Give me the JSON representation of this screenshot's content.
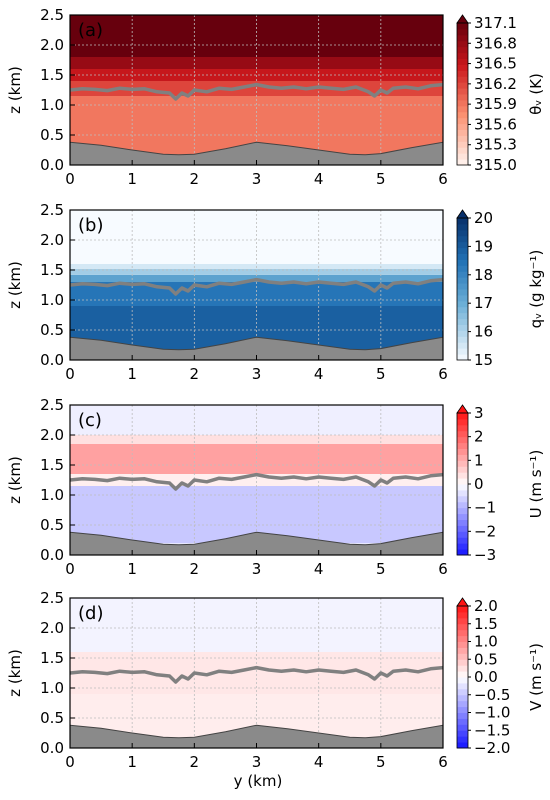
{
  "figure": {
    "xlabel": "y (km)"
  },
  "colors": {
    "terrain": "#8a8a8a",
    "boundary_line": "#808080",
    "grid": "#bdbdbd"
  },
  "chart_data": [
    {
      "type": "heatmap",
      "panel_label": "(a)",
      "colorscale": "reds",
      "xlabel": "",
      "ylabel": "z (km)",
      "xlim": [
        0,
        6
      ],
      "ylim": [
        0,
        2.5
      ],
      "x_ticks": [
        "0",
        "1",
        "2",
        "3",
        "4",
        "5",
        "6"
      ],
      "y_ticks": [
        "0.0",
        "0.5",
        "1.0",
        "1.5",
        "2.0",
        "2.5"
      ],
      "colorbar": {
        "label": "θᵥ (K)",
        "range": [
          315.0,
          317.1
        ],
        "ticks": [
          "315.0",
          "315.3",
          "315.6",
          "315.9",
          "316.2",
          "316.5",
          "316.8",
          "317.1"
        ]
      },
      "layers": [
        {
          "z_from": 0.0,
          "z_to": 1.15,
          "value": 315.9
        },
        {
          "z_from": 1.15,
          "z_to": 1.4,
          "value": 316.2
        },
        {
          "z_from": 1.4,
          "z_to": 1.6,
          "value": 316.5
        },
        {
          "z_from": 1.6,
          "z_to": 1.8,
          "value": 316.8
        },
        {
          "z_from": 1.8,
          "z_to": 2.5,
          "value": 317.1
        }
      ]
    },
    {
      "type": "heatmap",
      "panel_label": "(b)",
      "colorscale": "blues",
      "xlabel": "",
      "ylabel": "z (km)",
      "xlim": [
        0,
        6
      ],
      "ylim": [
        0,
        2.5
      ],
      "x_ticks": [
        "0",
        "1",
        "2",
        "3",
        "4",
        "5",
        "6"
      ],
      "y_ticks": [
        "0.0",
        "0.5",
        "1.0",
        "1.5",
        "2.0",
        "2.5"
      ],
      "colorbar": {
        "label": "qᵥ (g kg⁻¹)",
        "range": [
          15,
          20
        ],
        "ticks": [
          "15",
          "16",
          "17",
          "18",
          "19",
          "20"
        ]
      },
      "layers": [
        {
          "z_from": 0.0,
          "z_to": 0.9,
          "value": 18.9
        },
        {
          "z_from": 0.9,
          "z_to": 1.3,
          "value": 18.4
        },
        {
          "z_from": 1.3,
          "z_to": 1.42,
          "value": 17.3
        },
        {
          "z_from": 1.42,
          "z_to": 1.52,
          "value": 16.2
        },
        {
          "z_from": 1.52,
          "z_to": 1.6,
          "value": 15.5
        },
        {
          "z_from": 1.6,
          "z_to": 2.5,
          "value": 15.0
        }
      ]
    },
    {
      "type": "heatmap",
      "panel_label": "(c)",
      "colorscale": "bwr",
      "xlabel": "",
      "ylabel": "z (km)",
      "xlim": [
        0,
        6
      ],
      "ylim": [
        0,
        2.5
      ],
      "x_ticks": [
        "0",
        "1",
        "2",
        "3",
        "4",
        "5",
        "6"
      ],
      "y_ticks": [
        "0.0",
        "0.5",
        "1.0",
        "1.5",
        "2.0",
        "2.5"
      ],
      "colorbar": {
        "label": "U (m s⁻¹)",
        "range": [
          -3,
          3
        ],
        "ticks": [
          "−3",
          "−2",
          "−1",
          "0",
          "1",
          "2",
          "3"
        ]
      },
      "layers": [
        {
          "z_from": 0.0,
          "z_to": 0.2,
          "value": -0.3
        },
        {
          "z_from": 0.2,
          "z_to": 1.15,
          "value": -0.7
        },
        {
          "z_from": 1.15,
          "z_to": 1.35,
          "value": 0.2
        },
        {
          "z_from": 1.35,
          "z_to": 1.85,
          "value": 1.2
        },
        {
          "z_from": 1.85,
          "z_to": 2.0,
          "value": 0.4
        },
        {
          "z_from": 2.0,
          "z_to": 2.5,
          "value": -0.2
        }
      ]
    },
    {
      "type": "heatmap",
      "panel_label": "(d)",
      "colorscale": "bwr",
      "xlabel": "y (km)",
      "ylabel": "z (km)",
      "xlim": [
        0,
        6
      ],
      "ylim": [
        0,
        2.5
      ],
      "x_ticks": [
        "0",
        "1",
        "2",
        "3",
        "4",
        "5",
        "6"
      ],
      "y_ticks": [
        "0.0",
        "0.5",
        "1.0",
        "1.5",
        "2.0",
        "2.5"
      ],
      "colorbar": {
        "label": "V (m s⁻¹)",
        "range": [
          -2,
          2
        ],
        "ticks": [
          "−2.0",
          "−1.5",
          "−1.0",
          "−0.5",
          "0.0",
          "0.5",
          "1.0",
          "1.5",
          "2.0"
        ]
      },
      "layers": [
        {
          "z_from": 0.0,
          "z_to": 0.9,
          "value": 0.15
        },
        {
          "z_from": 0.9,
          "z_to": 1.6,
          "value": 0.2
        },
        {
          "z_from": 1.6,
          "z_to": 2.5,
          "value": -0.1
        }
      ]
    }
  ],
  "terrain": {
    "x": [
      0,
      0.5,
      1,
      1.5,
      1.75,
      2,
      2.5,
      3,
      3.5,
      4,
      4.5,
      4.75,
      5,
      5.5,
      6
    ],
    "z": [
      0.38,
      0.33,
      0.25,
      0.18,
      0.17,
      0.18,
      0.27,
      0.38,
      0.32,
      0.25,
      0.18,
      0.17,
      0.19,
      0.29,
      0.38
    ]
  },
  "boundary_layer_top": {
    "x": [
      0,
      0.2,
      0.4,
      0.6,
      0.8,
      1.0,
      1.2,
      1.4,
      1.6,
      1.7,
      1.8,
      1.9,
      2.0,
      2.2,
      2.4,
      2.6,
      2.8,
      3.0,
      3.2,
      3.4,
      3.6,
      3.8,
      4.0,
      4.2,
      4.4,
      4.6,
      4.8,
      4.9,
      5.0,
      5.1,
      5.2,
      5.4,
      5.6,
      5.8,
      6.0
    ],
    "z": [
      1.25,
      1.27,
      1.26,
      1.24,
      1.28,
      1.26,
      1.27,
      1.22,
      1.2,
      1.1,
      1.2,
      1.15,
      1.25,
      1.22,
      1.28,
      1.26,
      1.3,
      1.34,
      1.3,
      1.28,
      1.3,
      1.27,
      1.3,
      1.28,
      1.26,
      1.3,
      1.22,
      1.15,
      1.25,
      1.2,
      1.28,
      1.3,
      1.27,
      1.32,
      1.34
    ]
  }
}
